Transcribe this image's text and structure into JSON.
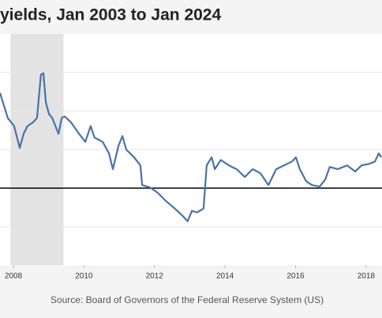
{
  "chart_data": {
    "type": "line",
    "title": "yields, Jan 2003 to Jan 2024",
    "source": "Source: Board of Governors of the Federal Reserve System (US)",
    "x": [
      2007.62,
      2007.84,
      2008.02,
      2008.18,
      2008.29,
      2008.4,
      2008.56,
      2008.67,
      2008.78,
      2008.85,
      2008.92,
      2009.01,
      2009.1,
      2009.19,
      2009.28,
      2009.37,
      2009.45,
      2009.63,
      2009.86,
      2010.04,
      2010.19,
      2010.3,
      2010.53,
      2010.71,
      2010.82,
      2010.98,
      2011.09,
      2011.2,
      2011.42,
      2011.6,
      2011.65,
      2011.87,
      2012.09,
      2012.32,
      2012.5,
      2012.65,
      2012.81,
      2012.94,
      2013.06,
      2013.21,
      2013.39,
      2013.48,
      2013.62,
      2013.71,
      2013.88,
      2014.11,
      2014.33,
      2014.56,
      2014.78,
      2015.0,
      2015.23,
      2015.45,
      2015.67,
      2015.9,
      2016.01,
      2016.12,
      2016.3,
      2016.46,
      2016.68,
      2016.84,
      2016.97,
      2017.19,
      2017.46,
      2017.69,
      2017.87,
      2018.09,
      2018.25,
      2018.36,
      2018.43
    ],
    "series": [
      {
        "color": "#4a72a8",
        "values": [
          2.47,
          1.82,
          1.61,
          1.04,
          1.41,
          1.61,
          1.71,
          1.82,
          2.94,
          2.98,
          2.22,
          1.92,
          1.82,
          1.61,
          1.41,
          1.82,
          1.86,
          1.71,
          1.41,
          1.2,
          1.61,
          1.31,
          1.2,
          0.9,
          0.49,
          1.1,
          1.35,
          1.0,
          0.8,
          0.59,
          0.08,
          0.02,
          -0.12,
          -0.33,
          -0.47,
          -0.59,
          -0.73,
          -0.86,
          -0.59,
          -0.63,
          -0.53,
          0.59,
          0.8,
          0.49,
          0.73,
          0.59,
          0.49,
          0.29,
          0.49,
          0.39,
          0.08,
          0.49,
          0.59,
          0.69,
          0.8,
          0.49,
          0.18,
          0.08,
          0.04,
          0.22,
          0.55,
          0.49,
          0.59,
          0.43,
          0.59,
          0.63,
          0.69,
          0.9,
          0.8
        ]
      }
    ],
    "xlim": [
      2007.62,
      2018.45
    ],
    "xticks": [
      2008,
      2010,
      2012,
      2014,
      2016,
      2018
    ],
    "ylim": [
      -2,
      4
    ],
    "yticks": [
      -1,
      0,
      1,
      2,
      3
    ],
    "grid": true,
    "shaded": [
      2007.92,
      2009.42
    ]
  }
}
